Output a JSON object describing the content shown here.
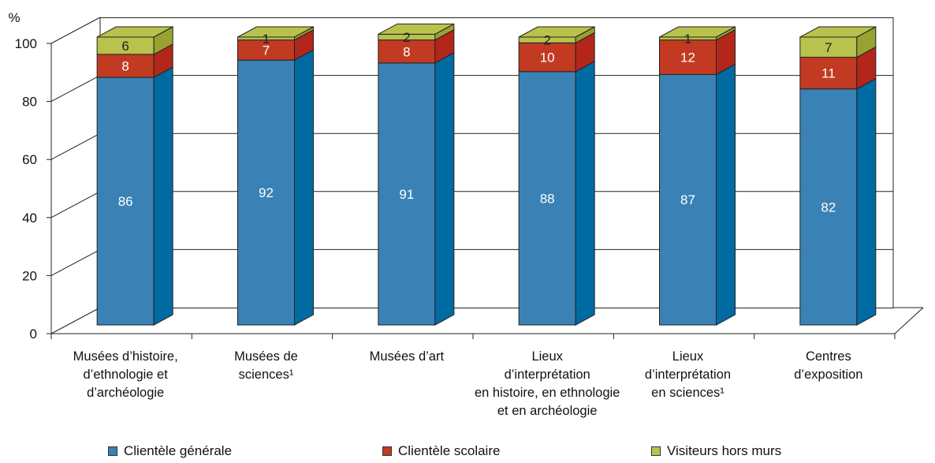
{
  "chart_data": {
    "type": "bar",
    "stacked": true,
    "three_d": true,
    "y_unit_label": "%",
    "ylim": [
      0,
      100
    ],
    "yticks": [
      0,
      20,
      40,
      60,
      80,
      100
    ],
    "grid": true,
    "legend_position": "bottom",
    "categories": [
      [
        "Musées d’histoire,",
        "d’ethnologie et",
        "d’archéologie"
      ],
      [
        "Musées de",
        "sciences¹"
      ],
      [
        "Musées d’art"
      ],
      [
        "Lieux",
        "d’interprétation",
        "en histoire, en ethnologie",
        "et en archéologie"
      ],
      [
        "Lieux",
        "d’interprétation",
        "en sciences¹"
      ],
      [
        "Centres",
        "d’exposition"
      ]
    ],
    "series": [
      {
        "name": "Clientèle générale",
        "color": "#3A82B5",
        "side_color": "#006BA3",
        "values": [
          86,
          92,
          91,
          88,
          87,
          82
        ]
      },
      {
        "name": "Clientèle scolaire",
        "color": "#C23A22",
        "side_color": "#B3261A",
        "values": [
          8,
          7,
          8,
          10,
          12,
          11
        ]
      },
      {
        "name": "Visiteurs hors murs",
        "color": "#B8C24C",
        "side_color": "#98A232",
        "values": [
          6,
          1,
          2,
          2,
          1,
          7
        ]
      }
    ]
  }
}
